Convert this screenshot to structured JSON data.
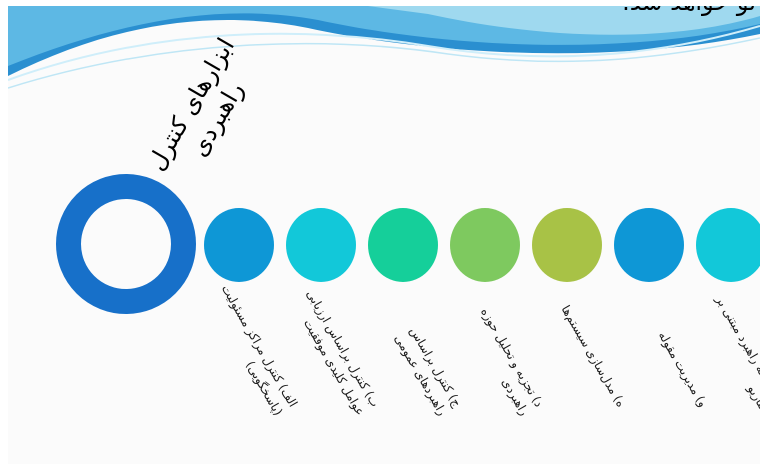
{
  "header": {
    "text": "تو خواهد شد."
  },
  "title": {
    "line1": "ابزارهای کنترل",
    "line2": "راهبردی"
  },
  "colors": {
    "ring": "#1770c9",
    "swoosh_dark": "#2a8fd0",
    "swoosh_light": "#9fd9ef"
  },
  "nodes": [
    {
      "color": "#0e97d6",
      "line1": "الف) کنترل مراکز مسئولیت",
      "line2": "(پاسخگویی)"
    },
    {
      "color": "#12c8d9",
      "line1": "ب) کنترل براساس ارزیابی",
      "line2": "عوامل کلیدی موفقیت"
    },
    {
      "color": "#15cf9a",
      "line1": "ج) کنترل براساس",
      "line2": "راهبردهای عمومی"
    },
    {
      "color": "#7ec95f",
      "line1": "د) تجزیه و تحلیل حوزه",
      "line2": "راهبردی"
    },
    {
      "color": "#a8c246",
      "line1": "ه) مدل‌سازی سیستم‌ها",
      "line2": ""
    },
    {
      "color": "#0e97d6",
      "line1": "و) مدیریت مقوله",
      "line2": ""
    },
    {
      "color": "#12c8d9",
      "line1": "ز) توسعه راهبرد مبتنی بر",
      "line2": "سناریو"
    }
  ]
}
